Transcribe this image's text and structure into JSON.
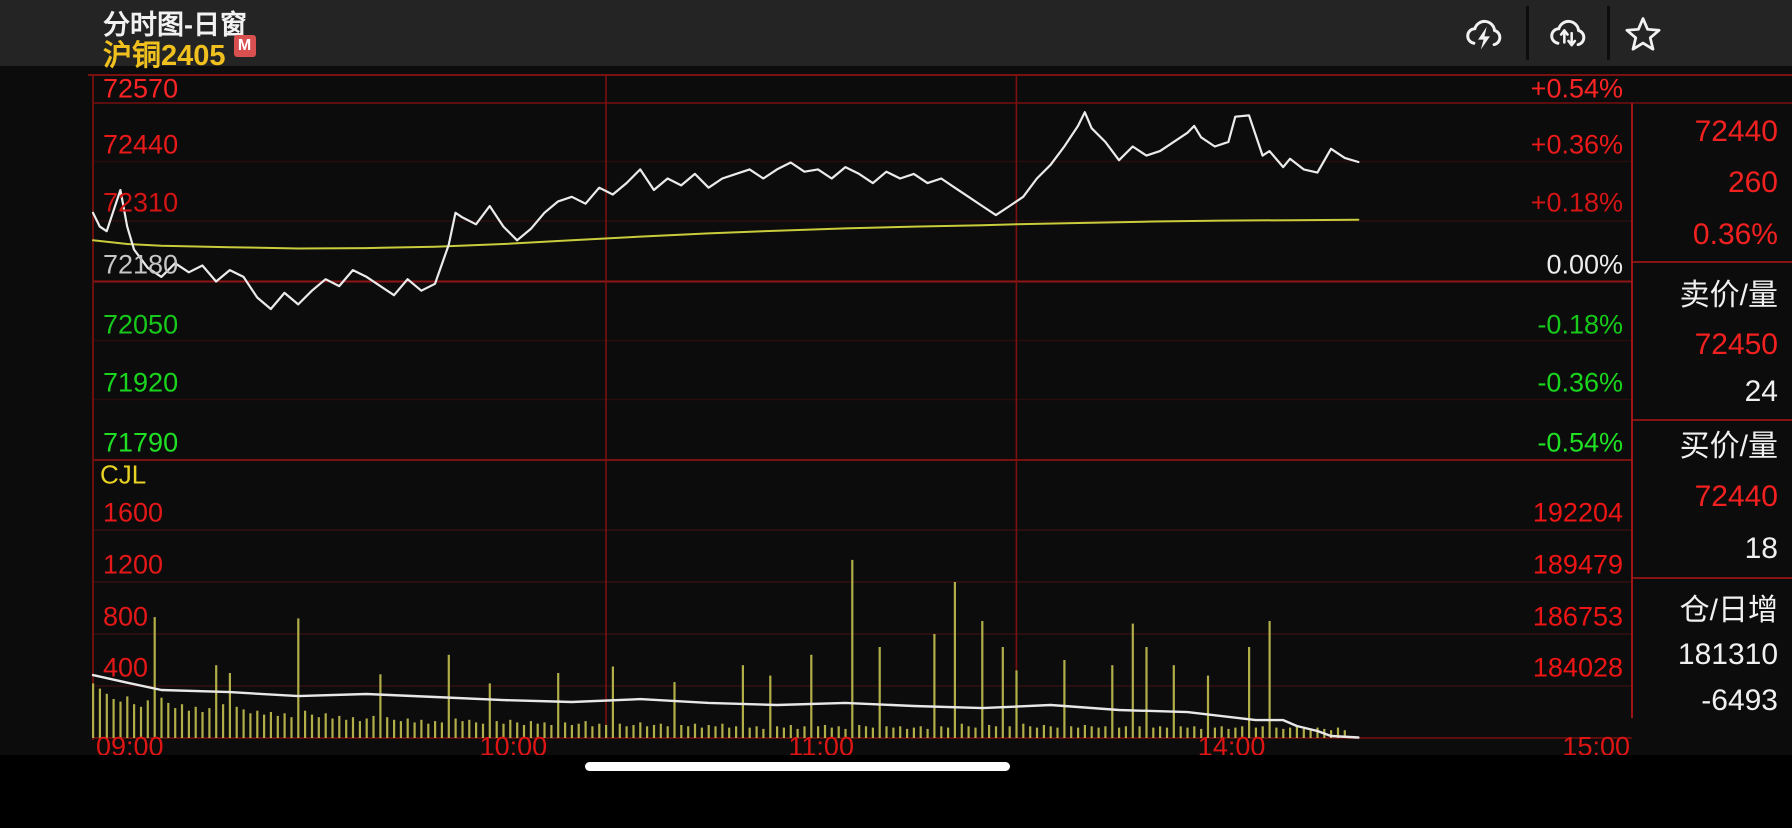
{
  "header": {
    "view_title": "分时图-日窗",
    "contract": "沪铜2405",
    "badge": "M",
    "icons": [
      "cloud-flash",
      "cloud-sync",
      "favorite-star"
    ]
  },
  "price_axis": [
    {
      "text": "72570",
      "color": "#fb2323"
    },
    {
      "text": "72440",
      "color": "#ea1a1a"
    },
    {
      "text": "72310",
      "color": "#d51414"
    },
    {
      "text": "72180",
      "color": "#c6c6c6"
    },
    {
      "text": "72050",
      "color": "#16c91a"
    },
    {
      "text": "71920",
      "color": "#1ad51e"
    },
    {
      "text": "71790",
      "color": "#20e025"
    }
  ],
  "percent_axis": [
    {
      "text": "+0.54%",
      "color": "#fb2323"
    },
    {
      "text": "+0.36%",
      "color": "#ea1a1a"
    },
    {
      "text": "+0.18%",
      "color": "#d51414"
    },
    {
      "text": "0.00%",
      "color": "#ececec"
    },
    {
      "text": "-0.18%",
      "color": "#16c91a"
    },
    {
      "text": "-0.36%",
      "color": "#1ad51e"
    },
    {
      "text": "-0.54%",
      "color": "#20e025"
    }
  ],
  "indicator_label": "CJL",
  "volume_axis": [
    "1600",
    "1200",
    "800",
    "400"
  ],
  "oi_axis": [
    "192204",
    "189479",
    "186753",
    "184028"
  ],
  "time_axis": [
    "09:00",
    "10:00",
    "11:00",
    "14:00",
    "15:00"
  ],
  "quote_panel": {
    "last_price": "72440",
    "change": "260",
    "change_pct": "0.36%",
    "ask_label": "卖价/量",
    "ask_price": "72450",
    "ask_volume": "24",
    "bid_label": "买价/量",
    "bid_price": "72440",
    "bid_volume": "18",
    "position_label": "仓/日增",
    "open_interest": "181310",
    "oi_daily_change": "-6493"
  },
  "chart_data": {
    "type": "line",
    "title": "沪铜2405 分时图-日窗",
    "x_axis": {
      "unit": "trading-minute",
      "total_minutes": 225,
      "session_break_minutes": [
        75,
        135
      ],
      "labels": [
        {
          "text": "09:00",
          "min": 0
        },
        {
          "text": "10:00",
          "min": 60
        },
        {
          "text": "11:00",
          "min": 105
        },
        {
          "text": "14:00",
          "min": 165
        },
        {
          "text": "15:00",
          "min": 225
        }
      ]
    },
    "price_pane": {
      "ylim": [
        71790,
        72570
      ],
      "prev_close": 72180,
      "grid_levels": [
        72570,
        72440,
        72310,
        72180,
        72050,
        71920,
        71790
      ],
      "series": [
        {
          "name": "price",
          "color": "#ebebeb",
          "points": [
            [
              0,
              72330
            ],
            [
              1,
              72300
            ],
            [
              2,
              72290
            ],
            [
              4,
              72380
            ],
            [
              5,
              72300
            ],
            [
              6,
              72250
            ],
            [
              8,
              72210
            ],
            [
              10,
              72190
            ],
            [
              12,
              72220
            ],
            [
              14,
              72200
            ],
            [
              16,
              72215
            ],
            [
              18,
              72180
            ],
            [
              20,
              72205
            ],
            [
              22,
              72190
            ],
            [
              24,
              72145
            ],
            [
              26,
              72120
            ],
            [
              28,
              72155
            ],
            [
              30,
              72130
            ],
            [
              32,
              72160
            ],
            [
              34,
              72185
            ],
            [
              36,
              72170
            ],
            [
              38,
              72205
            ],
            [
              40,
              72190
            ],
            [
              42,
              72170
            ],
            [
              44,
              72150
            ],
            [
              46,
              72185
            ],
            [
              48,
              72160
            ],
            [
              50,
              72175
            ],
            [
              52,
              72260
            ],
            [
              53,
              72330
            ],
            [
              54,
              72320
            ],
            [
              56,
              72305
            ],
            [
              58,
              72345
            ],
            [
              60,
              72300
            ],
            [
              62,
              72270
            ],
            [
              64,
              72295
            ],
            [
              66,
              72330
            ],
            [
              68,
              72355
            ],
            [
              70,
              72365
            ],
            [
              72,
              72350
            ],
            [
              74,
              72385
            ],
            [
              76,
              72370
            ],
            [
              78,
              72395
            ],
            [
              80,
              72425
            ],
            [
              82,
              72380
            ],
            [
              84,
              72405
            ],
            [
              86,
              72390
            ],
            [
              88,
              72415
            ],
            [
              90,
              72385
            ],
            [
              92,
              72405
            ],
            [
              94,
              72415
            ],
            [
              96,
              72425
            ],
            [
              98,
              72405
            ],
            [
              100,
              72425
            ],
            [
              102,
              72440
            ],
            [
              104,
              72420
            ],
            [
              106,
              72425
            ],
            [
              108,
              72405
            ],
            [
              110,
              72430
            ],
            [
              112,
              72415
            ],
            [
              114,
              72395
            ],
            [
              116,
              72420
            ],
            [
              118,
              72405
            ],
            [
              120,
              72415
            ],
            [
              122,
              72395
            ],
            [
              124,
              72405
            ],
            [
              126,
              72385
            ],
            [
              128,
              72365
            ],
            [
              130,
              72345
            ],
            [
              132,
              72325
            ],
            [
              134,
              72345
            ],
            [
              136,
              72365
            ],
            [
              138,
              72405
            ],
            [
              140,
              72435
            ],
            [
              142,
              72475
            ],
            [
              144,
              72520
            ],
            [
              145,
              72550
            ],
            [
              146,
              72515
            ],
            [
              148,
              72485
            ],
            [
              150,
              72445
            ],
            [
              152,
              72475
            ],
            [
              154,
              72455
            ],
            [
              156,
              72465
            ],
            [
              158,
              72485
            ],
            [
              160,
              72505
            ],
            [
              161,
              72520
            ],
            [
              162,
              72495
            ],
            [
              164,
              72475
            ],
            [
              166,
              72485
            ],
            [
              167,
              72540
            ],
            [
              169,
              72543
            ],
            [
              171,
              72455
            ],
            [
              172,
              72465
            ],
            [
              174,
              72430
            ],
            [
              175,
              72448
            ],
            [
              177,
              72425
            ],
            [
              179,
              72418
            ],
            [
              181,
              72470
            ],
            [
              183,
              72450
            ],
            [
              185,
              72441
            ]
          ]
        },
        {
          "name": "average",
          "color": "#c9cd3c",
          "points": [
            [
              0,
              72270
            ],
            [
              5,
              72262
            ],
            [
              10,
              72258
            ],
            [
              20,
              72255
            ],
            [
              30,
              72252
            ],
            [
              40,
              72253
            ],
            [
              50,
              72256
            ],
            [
              60,
              72262
            ],
            [
              70,
              72270
            ],
            [
              80,
              72278
            ],
            [
              90,
              72285
            ],
            [
              100,
              72291
            ],
            [
              110,
              72296
            ],
            [
              120,
              72300
            ],
            [
              130,
              72303
            ],
            [
              135,
              72305
            ],
            [
              145,
              72308
            ],
            [
              155,
              72311
            ],
            [
              165,
              72313
            ],
            [
              175,
              72314
            ],
            [
              185,
              72315
            ]
          ]
        }
      ]
    },
    "volume_pane": {
      "indicator": "CJL",
      "volume_ylim": [
        0,
        1600
      ],
      "oi_ylim": [
        181300,
        192204
      ],
      "oi_grid_levels": [
        192204,
        189479,
        186753,
        184028
      ],
      "volume_bars": {
        "color": "#b1ae48",
        "start_minute": 0,
        "values": [
          420,
          380,
          340,
          300,
          280,
          320,
          260,
          240,
          290,
          930,
          310,
          270,
          230,
          260,
          210,
          240,
          200,
          230,
          560,
          260,
          500,
          240,
          220,
          190,
          210,
          180,
          200,
          170,
          190,
          160,
          920,
          210,
          180,
          160,
          190,
          150,
          170,
          140,
          160,
          130,
          150,
          170,
          490,
          160,
          140,
          130,
          150,
          120,
          140,
          110,
          130,
          120,
          640,
          150,
          130,
          140,
          120,
          110,
          420,
          130,
          110,
          140,
          120,
          100,
          130,
          110,
          120,
          100,
          500,
          120,
          100,
          110,
          130,
          90,
          110,
          100,
          550,
          110,
          90,
          100,
          120,
          90,
          100,
          110,
          90,
          430,
          100,
          90,
          110,
          80,
          100,
          90,
          110,
          80,
          90,
          560,
          80,
          90,
          70,
          480,
          90,
          80,
          100,
          70,
          90,
          640,
          90,
          100,
          80,
          90,
          70,
          1370,
          100,
          90,
          80,
          700,
          90,
          80,
          90,
          70,
          80,
          90,
          70,
          800,
          90,
          80,
          1200,
          110,
          90,
          80,
          900,
          100,
          90,
          700,
          90,
          520,
          110,
          90,
          80,
          100,
          90,
          80,
          600,
          90,
          80,
          100,
          90,
          80,
          90,
          560,
          80,
          90,
          880,
          90,
          700,
          80,
          90,
          80,
          560,
          90,
          80,
          90,
          70,
          480,
          80,
          90,
          70,
          80,
          90,
          700,
          80,
          90,
          900,
          80,
          70,
          80,
          90,
          70,
          60,
          80,
          70,
          60,
          80,
          60
        ]
      },
      "oi_line": {
        "name": "open-interest",
        "color": "#e8e8e8",
        "points": [
          [
            0,
            184600
          ],
          [
            5,
            184200
          ],
          [
            10,
            183820
          ],
          [
            20,
            183710
          ],
          [
            30,
            183500
          ],
          [
            40,
            183610
          ],
          [
            50,
            183450
          ],
          [
            60,
            183290
          ],
          [
            70,
            183190
          ],
          [
            80,
            183340
          ],
          [
            90,
            183140
          ],
          [
            100,
            183030
          ],
          [
            110,
            183140
          ],
          [
            120,
            182980
          ],
          [
            130,
            182870
          ],
          [
            140,
            183030
          ],
          [
            150,
            182770
          ],
          [
            160,
            182660
          ],
          [
            165,
            182450
          ],
          [
            170,
            182240
          ],
          [
            174,
            182240
          ],
          [
            176,
            181930
          ],
          [
            179,
            181670
          ],
          [
            181,
            181410
          ],
          [
            185,
            181330
          ]
        ]
      }
    }
  }
}
